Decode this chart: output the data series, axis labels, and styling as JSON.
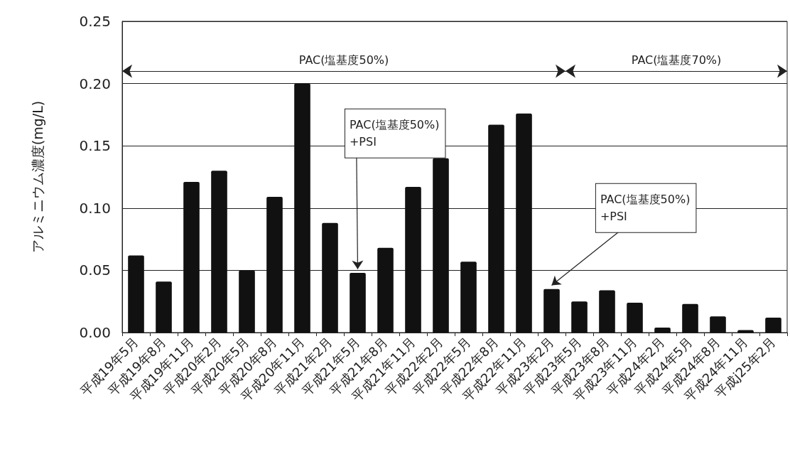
{
  "chart_data": {
    "type": "bar",
    "ylabel": "アルミニウム濃度(mg/L)",
    "categories": [
      "平成19年5月",
      "平成19年8月",
      "平成19年11月",
      "平成20年2月",
      "平成20年5月",
      "平成20年8月",
      "平成20年11月",
      "平成21年2月",
      "平成21年5月",
      "平成21年8月",
      "平成21年11月",
      "平成22年2月",
      "平成22年5月",
      "平成22年8月",
      "平成22年11月",
      "平成23年2月",
      "平成23年5月",
      "平成23年8月",
      "平成23年11月",
      "平成24年2月",
      "平成24年5月",
      "平成24年8月",
      "平成24年11月",
      "平成j25年2月"
    ],
    "values": [
      0.062,
      0.041,
      0.121,
      0.13,
      0.05,
      0.109,
      0.2,
      0.088,
      0.048,
      0.068,
      0.117,
      0.14,
      0.057,
      0.167,
      0.176,
      0.035,
      0.025,
      0.034,
      0.024,
      0.004,
      0.023,
      0.013,
      0.002,
      0.012
    ],
    "color": "#111111",
    "ylim": [
      0,
      0.25
    ],
    "yticks": [
      {
        "value": 0,
        "label": "0.00"
      },
      {
        "value": 0.05,
        "label": "0.05"
      },
      {
        "value": 0.1,
        "label": "0.10"
      },
      {
        "value": 0.15,
        "label": "0.15"
      },
      {
        "value": 0.2,
        "label": "0.20"
      },
      {
        "value": 0.25,
        "label": "0.25"
      }
    ],
    "grid": "y",
    "annotations": [
      "PAC(塩基度50%)",
      "PAC(塩基度70%)",
      {
        "text": "PAC(塩基度50%)\n+PSI",
        "x": "平成21年5月",
        "y": 0.048
      },
      {
        "text": "PAC(塩基度50%)\n+PSI",
        "x": "平成23年2月",
        "y": 0.035
      }
    ]
  }
}
